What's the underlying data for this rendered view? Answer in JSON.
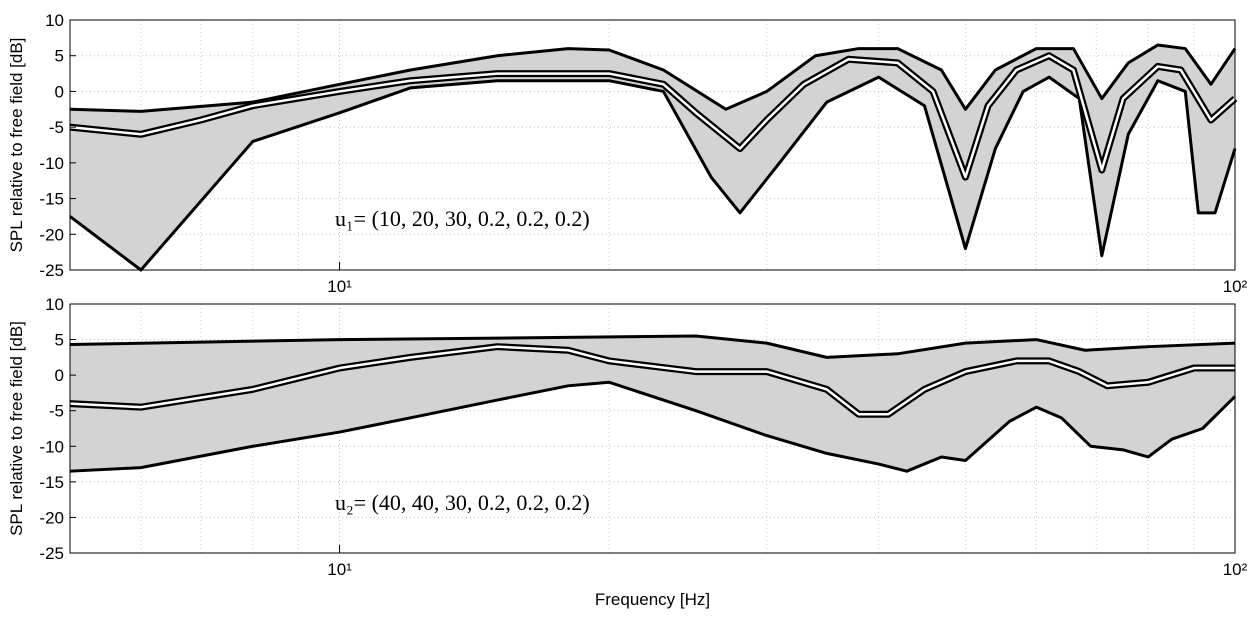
{
  "chart_data": [
    {
      "type": "line",
      "ylabel": "SPL relative to free field [dB]",
      "annotation": "u₁= (10, 20, 30, 0.2, 0.2, 0.2)",
      "xscale": "log",
      "xlim": [
        5,
        100
      ],
      "xticks": [
        {
          "value": 10,
          "label": "10¹"
        },
        {
          "value": 100,
          "label": "10²"
        }
      ],
      "xminor": [
        6,
        7,
        8,
        9,
        20,
        30,
        40,
        50,
        60,
        70,
        80,
        90
      ],
      "ylim": [
        -25,
        10
      ],
      "yticks": [
        -25,
        -20,
        -15,
        -10,
        -5,
        0,
        5,
        10
      ],
      "grid": true,
      "band_color": "#d3d3d3",
      "series": [
        {
          "color": "#000000",
          "x": [
            5,
            6,
            8,
            10,
            12,
            15,
            18,
            20,
            23,
            27,
            30,
            34,
            38,
            42,
            47,
            50,
            54,
            60,
            66,
            71,
            76,
            82,
            88,
            94,
            100
          ],
          "values": [
            -2.5,
            -2.8,
            -1.5,
            1,
            3,
            5,
            6,
            5.8,
            3,
            -2.5,
            0,
            5,
            6,
            6,
            3,
            -2.5,
            3,
            6,
            6,
            -1,
            4,
            6.5,
            6,
            1,
            6
          ]
        },
        {
          "color": "#000000",
          "x": [
            5,
            6,
            8,
            10,
            12,
            15,
            20,
            23,
            26,
            28,
            31,
            35,
            40,
            45,
            50,
            54,
            58,
            62,
            67,
            71,
            76,
            82,
            88,
            91,
            95,
            100
          ],
          "values": [
            -17.5,
            -25,
            -7,
            -3,
            0.5,
            1.5,
            1.5,
            0,
            -12,
            -17,
            -10,
            -1.5,
            2,
            -2,
            -22,
            -8,
            0,
            2,
            -1,
            -23,
            -6,
            1.5,
            0,
            -17,
            -17,
            -8
          ]
        },
        {
          "color": "#ffffff",
          "outline": "#000000",
          "x": [
            5,
            6,
            7,
            8,
            10,
            12,
            15,
            20,
            23,
            25,
            28,
            30,
            33,
            37,
            42,
            46,
            50,
            53,
            57,
            62,
            66,
            71,
            75,
            82,
            87,
            94,
            100
          ],
          "values": [
            -5,
            -6,
            -4,
            -2,
            0,
            1.5,
            2.5,
            2.5,
            1,
            -3,
            -8,
            -4,
            1,
            4.5,
            4,
            0,
            -12,
            -2,
            3,
            5,
            3,
            -11,
            -1,
            3.5,
            3,
            -4,
            -1
          ]
        }
      ]
    },
    {
      "type": "line",
      "ylabel": "SPL relative to free field [dB]",
      "xlabel": "Frequency [Hz]",
      "annotation": "u₂= (40, 40, 30, 0.2, 0.2, 0.2)",
      "xscale": "log",
      "xlim": [
        5,
        100
      ],
      "xticks": [
        {
          "value": 10,
          "label": "10¹"
        },
        {
          "value": 100,
          "label": "10²"
        }
      ],
      "xminor": [
        6,
        7,
        8,
        9,
        20,
        30,
        40,
        50,
        60,
        70,
        80,
        90
      ],
      "ylim": [
        -25,
        10
      ],
      "yticks": [
        -25,
        -20,
        -15,
        -10,
        -5,
        0,
        5,
        10
      ],
      "grid": true,
      "band_color": "#d3d3d3",
      "series": [
        {
          "color": "#000000",
          "x": [
            5,
            10,
            15,
            25,
            30,
            35,
            42,
            50,
            60,
            68,
            80,
            100
          ],
          "values": [
            4.3,
            5,
            5.2,
            5.5,
            4.5,
            2.5,
            3,
            4.5,
            5,
            3.5,
            4,
            4.5
          ]
        },
        {
          "color": "#000000",
          "x": [
            5,
            6,
            8,
            10,
            12,
            15,
            18,
            20,
            25,
            30,
            35,
            40,
            43,
            47,
            50,
            56,
            60,
            64,
            69,
            75,
            80,
            85,
            92,
            100
          ],
          "values": [
            -13.5,
            -13,
            -10,
            -8,
            -6,
            -3.5,
            -1.5,
            -1,
            -5,
            -8.5,
            -11,
            -12.5,
            -13.5,
            -11.5,
            -12,
            -6.5,
            -4.5,
            -6,
            -10,
            -10.5,
            -11.5,
            -9,
            -7.5,
            -3
          ]
        },
        {
          "color": "#ffffff",
          "outline": "#000000",
          "x": [
            5,
            6,
            8,
            10,
            12,
            15,
            18,
            20,
            25,
            30,
            35,
            38,
            41,
            45,
            50,
            57,
            62,
            67,
            72,
            80,
            90,
            100
          ],
          "values": [
            -4,
            -4.5,
            -2,
            1,
            2.5,
            4,
            3.5,
            2,
            0.5,
            0.5,
            -2,
            -5.5,
            -5.5,
            -2,
            0.5,
            2,
            2,
            0.5,
            -1.5,
            -1,
            1,
            1
          ]
        }
      ]
    }
  ]
}
